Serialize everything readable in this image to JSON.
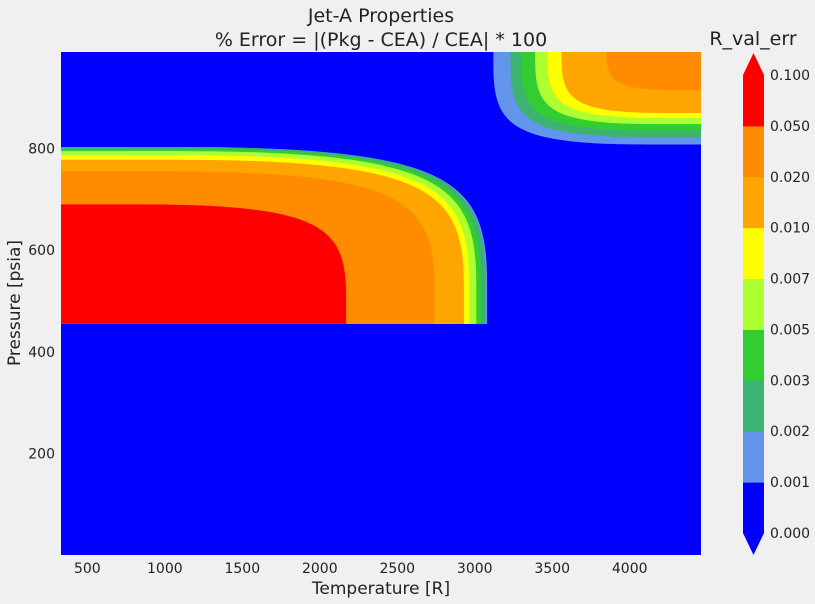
{
  "chart_data": {
    "type": "contour",
    "title_line1": "Jet-A Properties",
    "title_line2": "% Error = |(Pkg - CEA) / CEA| * 100",
    "xlabel": "Temperature [R]",
    "ylabel": "Pressure [psia]",
    "xlim": [
      330,
      4460
    ],
    "ylim": [
      0,
      990
    ],
    "x_ticks": [
      500,
      1000,
      1500,
      2000,
      2500,
      3000,
      3500,
      4000
    ],
    "y_ticks": [
      200,
      400,
      600,
      800
    ],
    "x_tick_labels": [
      "500",
      "1000",
      "1500",
      "2000",
      "2500",
      "3000",
      "3500",
      "4000"
    ],
    "y_tick_labels": [
      "200",
      "400",
      "600",
      "800"
    ],
    "colorbar": {
      "title": "R_val_err",
      "levels": [
        0.0,
        0.001,
        0.002,
        0.003,
        0.005,
        0.007,
        0.01,
        0.02,
        0.05,
        0.1
      ],
      "level_labels": [
        "0.000",
        "0.001",
        "0.002",
        "0.003",
        "0.005",
        "0.007",
        "0.010",
        "0.020",
        "0.050",
        "0.100"
      ],
      "colors": [
        "#0000ff",
        "#6495ed",
        "#3cb371",
        "#32cd32",
        "#adff2f",
        "#ffff00",
        "#ffa500",
        "#ff8c00",
        "#ff0000"
      ],
      "extend": "both",
      "under_color": "#0000ff",
      "over_color": "#ff0000"
    },
    "regions": {
      "lower_left": {
        "p_min": 455,
        "p_max": 803,
        "bands": [
          {
            "level": 0.001,
            "t_max": 3080,
            "p_top": 803
          },
          {
            "level": 0.002,
            "t_max": 3070,
            "p_top": 803
          },
          {
            "level": 0.003,
            "t_max": 3040,
            "p_top": 799
          },
          {
            "level": 0.005,
            "t_max": 3010,
            "p_top": 795
          },
          {
            "level": 0.007,
            "t_max": 2965,
            "p_top": 787
          },
          {
            "level": 0.01,
            "t_max": 2930,
            "p_top": 778
          },
          {
            "level": 0.02,
            "t_max": 2740,
            "p_top": 755
          },
          {
            "level": 0.05,
            "t_max": 2170,
            "p_top": 690
          }
        ]
      },
      "upper_right": {
        "p_max": 990,
        "bands": [
          {
            "level": 0.001,
            "t_min": 3120,
            "p_bottom": 808
          },
          {
            "level": 0.002,
            "t_min": 3230,
            "p_bottom": 822
          },
          {
            "level": 0.003,
            "t_min": 3300,
            "p_bottom": 835
          },
          {
            "level": 0.005,
            "t_min": 3390,
            "p_bottom": 848
          },
          {
            "level": 0.007,
            "t_min": 3470,
            "p_bottom": 860
          },
          {
            "level": 0.01,
            "t_min": 3560,
            "p_bottom": 870
          },
          {
            "level": 0.02,
            "t_min": 3850,
            "p_bottom": 915
          }
        ]
      }
    }
  }
}
